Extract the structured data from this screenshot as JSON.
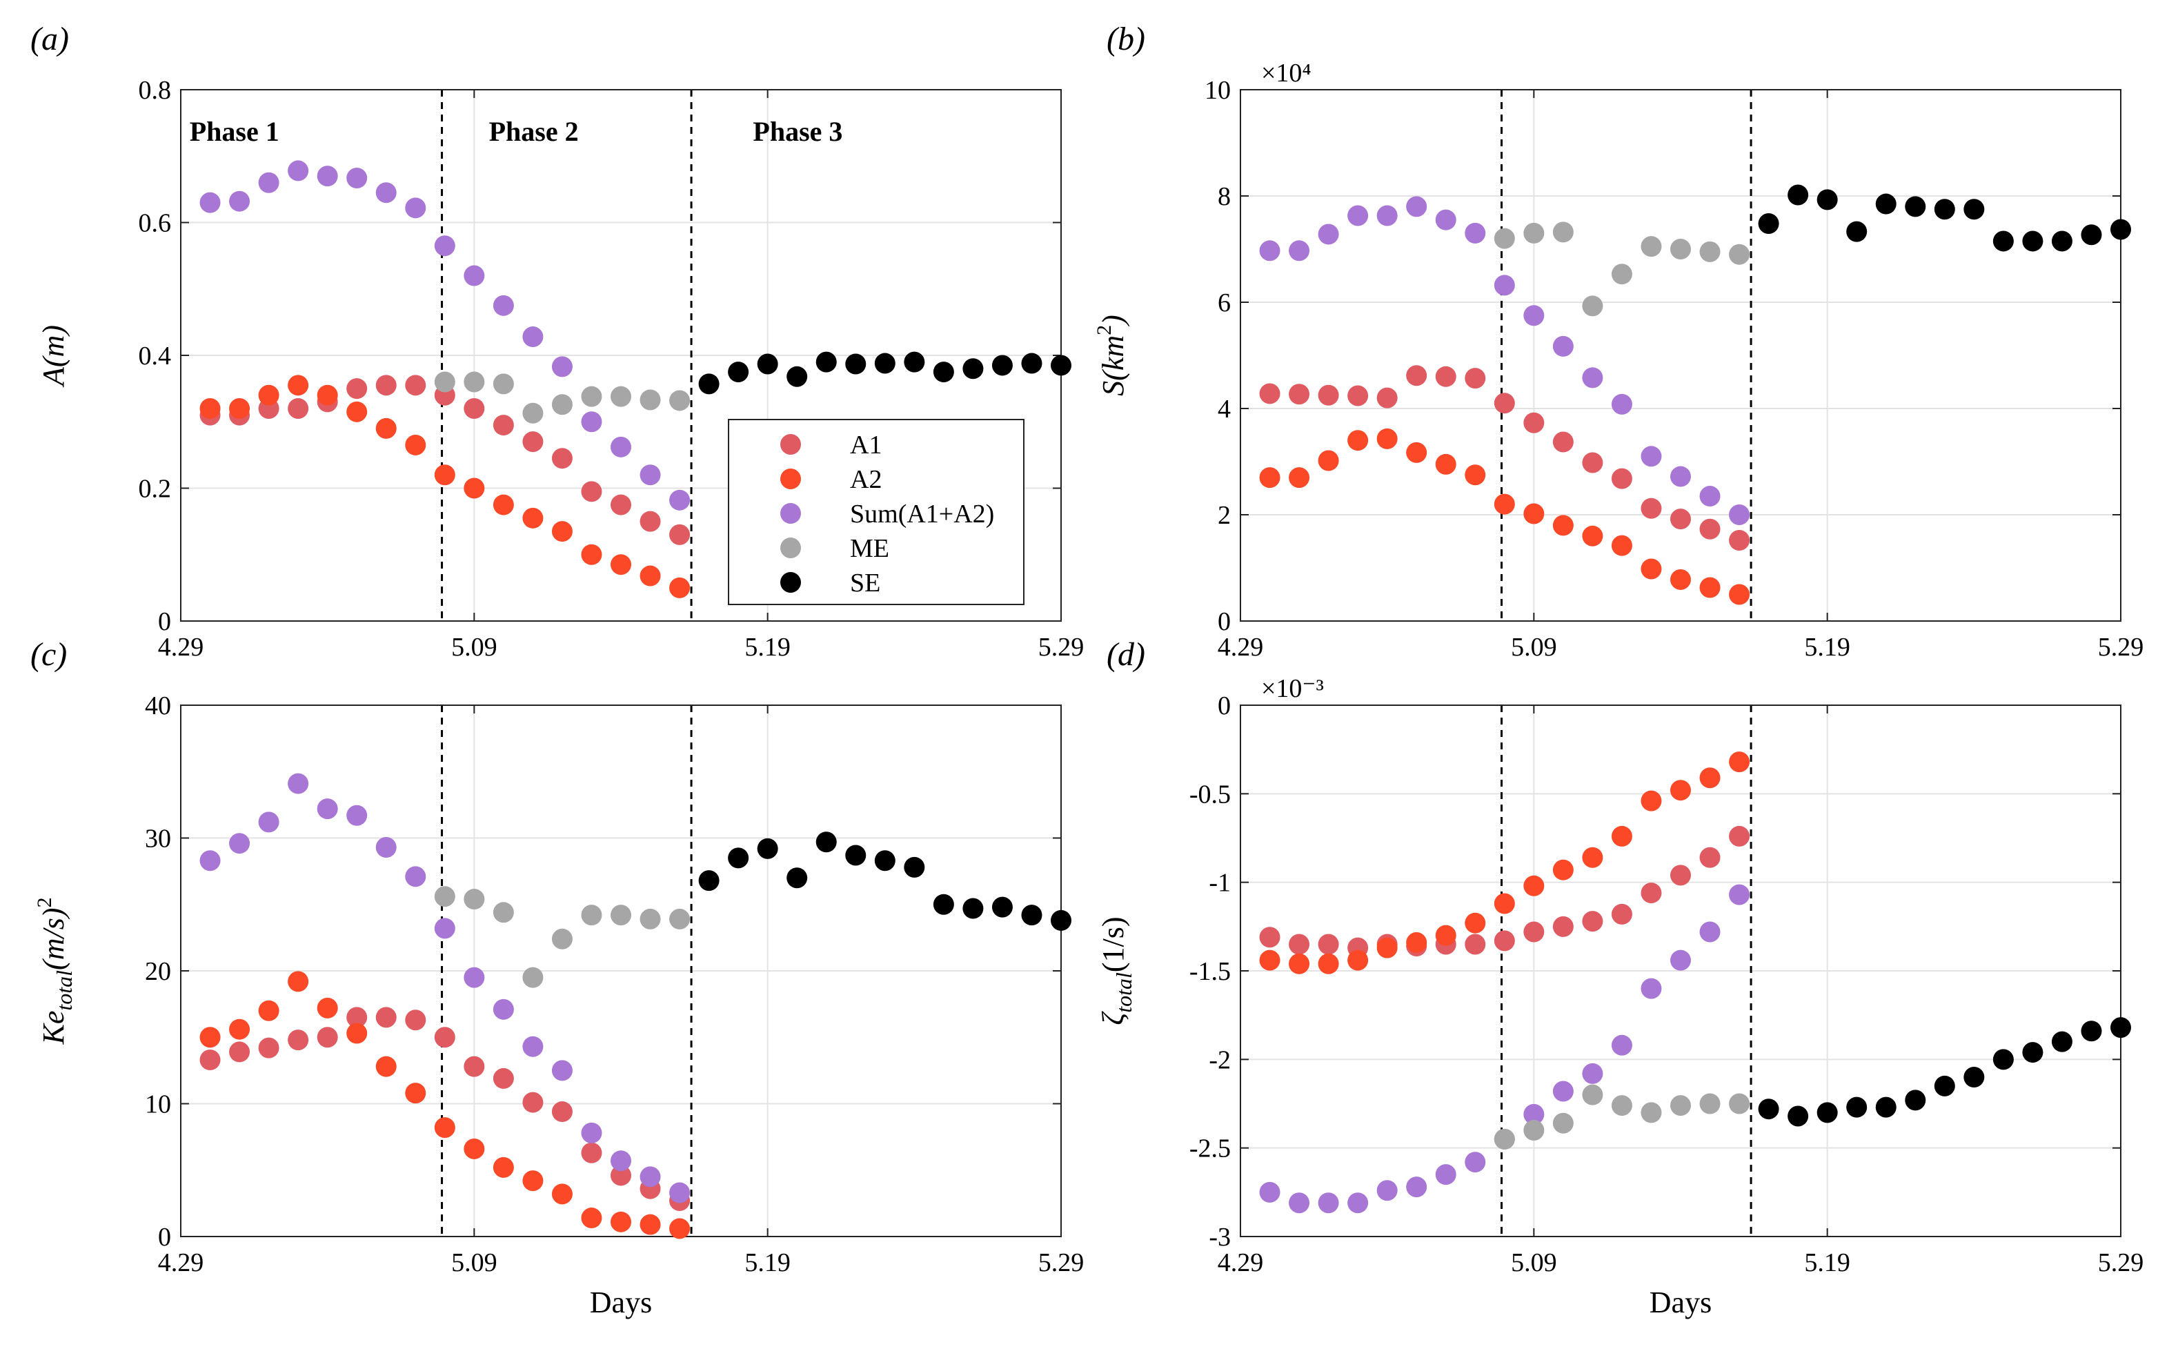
{
  "colors": {
    "A1": "#e05b61",
    "A2": "#fb4827",
    "Sum(A1+A2)": "#a877d6",
    "ME": "#a6a6a6",
    "SE": "#000000"
  },
  "legend": [
    "A1",
    "A2",
    "Sum(A1+A2)",
    "ME",
    "SE"
  ],
  "chart_data": [
    {
      "type": "scatter",
      "panel_label": "(a)",
      "ylabel": "A(m)",
      "xlabel": "",
      "xlim": [
        0,
        30
      ],
      "ylim": [
        0,
        0.8
      ],
      "yticks": [
        "0",
        "0.2",
        "0.4",
        "0.6",
        "0.8"
      ],
      "ytick_values": [
        0,
        0.2,
        0.4,
        0.6,
        0.8
      ],
      "xticks": [
        "4.29",
        "5.09",
        "5.19",
        "5.29"
      ],
      "xtick_values": [
        0,
        10,
        20,
        30
      ],
      "exponent": "",
      "vlines": [
        8.9,
        17.4
      ],
      "phases": [
        "Phase 1",
        "Phase 2",
        "Phase 3"
      ],
      "legend": true,
      "series": [
        {
          "name": "A1",
          "x": [
            1,
            2,
            3,
            4,
            5,
            6,
            7,
            8,
            9,
            10,
            11,
            12,
            13,
            14,
            15,
            16,
            17
          ],
          "y": [
            0.31,
            0.31,
            0.32,
            0.32,
            0.33,
            0.35,
            0.355,
            0.355,
            0.34,
            0.32,
            0.295,
            0.27,
            0.245,
            0.195,
            0.175,
            0.15,
            0.13
          ]
        },
        {
          "name": "A2",
          "x": [
            1,
            2,
            3,
            4,
            5,
            6,
            7,
            8,
            9,
            10,
            11,
            12,
            13,
            14,
            15,
            16,
            17
          ],
          "y": [
            0.32,
            0.32,
            0.34,
            0.355,
            0.34,
            0.315,
            0.29,
            0.265,
            0.22,
            0.2,
            0.175,
            0.155,
            0.135,
            0.1,
            0.085,
            0.068,
            0.05
          ]
        },
        {
          "name": "Sum(A1+A2)",
          "x": [
            1,
            2,
            3,
            4,
            5,
            6,
            7,
            8,
            9,
            10,
            11,
            12,
            13,
            14,
            15,
            16,
            17
          ],
          "y": [
            0.63,
            0.632,
            0.66,
            0.678,
            0.67,
            0.667,
            0.645,
            0.622,
            0.565,
            0.52,
            0.475,
            0.428,
            0.383,
            0.3,
            0.262,
            0.22,
            0.182
          ]
        },
        {
          "name": "ME",
          "x": [
            9,
            10,
            11,
            12,
            13,
            14,
            15,
            16,
            17
          ],
          "y": [
            0.36,
            0.36,
            0.357,
            0.313,
            0.326,
            0.338,
            0.338,
            0.333,
            0.332
          ]
        },
        {
          "name": "SE",
          "x": [
            18,
            19,
            20,
            21,
            22,
            23,
            24,
            25,
            26,
            27,
            28,
            29,
            30
          ],
          "y": [
            0.357,
            0.375,
            0.387,
            0.368,
            0.39,
            0.387,
            0.388,
            0.39,
            0.375,
            0.38,
            0.385,
            0.388,
            0.385
          ]
        }
      ]
    },
    {
      "type": "scatter",
      "panel_label": "(b)",
      "ylabel": "S(km²)",
      "xlabel": "",
      "xlim": [
        0,
        30
      ],
      "ylim": [
        0,
        10
      ],
      "yticks": [
        "0",
        "2",
        "4",
        "6",
        "8",
        "10"
      ],
      "ytick_values": [
        0,
        2,
        4,
        6,
        8,
        10
      ],
      "xticks": [
        "4.29",
        "5.09",
        "5.19",
        "5.29"
      ],
      "xtick_values": [
        0,
        10,
        20,
        30
      ],
      "exponent": "×10⁴",
      "vlines": [
        8.9,
        17.4
      ],
      "phases": [],
      "legend": false,
      "series": [
        {
          "name": "A1",
          "x": [
            1,
            2,
            3,
            4,
            5,
            6,
            7,
            8,
            9,
            10,
            11,
            12,
            13,
            14,
            15,
            16,
            17
          ],
          "y": [
            4.28,
            4.27,
            4.25,
            4.24,
            4.2,
            4.62,
            4.6,
            4.57,
            4.1,
            3.73,
            3.37,
            2.98,
            2.68,
            2.12,
            1.92,
            1.73,
            1.52
          ]
        },
        {
          "name": "A2",
          "x": [
            1,
            2,
            3,
            4,
            5,
            6,
            7,
            8,
            9,
            10,
            11,
            12,
            13,
            14,
            15,
            16,
            17
          ],
          "y": [
            2.7,
            2.7,
            3.02,
            3.4,
            3.43,
            3.17,
            2.95,
            2.75,
            2.2,
            2.02,
            1.8,
            1.6,
            1.42,
            0.98,
            0.78,
            0.63,
            0.5
          ]
        },
        {
          "name": "Sum(A1+A2)",
          "x": [
            1,
            2,
            3,
            4,
            5,
            6,
            7,
            8,
            9,
            10,
            11,
            12,
            13,
            14,
            15,
            16,
            17
          ],
          "y": [
            6.97,
            6.97,
            7.28,
            7.63,
            7.63,
            7.8,
            7.55,
            7.3,
            6.32,
            5.75,
            5.17,
            4.58,
            4.08,
            3.1,
            2.72,
            2.35,
            2.0
          ]
        },
        {
          "name": "ME",
          "x": [
            9,
            10,
            11,
            12,
            13,
            14,
            15,
            16,
            17
          ],
          "y": [
            7.2,
            7.3,
            7.32,
            5.93,
            6.53,
            7.05,
            7.0,
            6.95,
            6.9
          ]
        },
        {
          "name": "SE",
          "x": [
            18,
            19,
            20,
            21,
            22,
            23,
            24,
            25,
            26,
            27,
            28,
            29,
            30
          ],
          "y": [
            7.48,
            8.02,
            7.93,
            7.33,
            7.85,
            7.8,
            7.75,
            7.75,
            7.15,
            7.15,
            7.15,
            7.27,
            7.37
          ]
        }
      ]
    },
    {
      "type": "scatter",
      "panel_label": "(c)",
      "ylabel": "Ke_total(m/s)²",
      "xlabel": "Days",
      "xlim": [
        0,
        30
      ],
      "ylim": [
        0,
        40
      ],
      "yticks": [
        "0",
        "10",
        "20",
        "30",
        "40"
      ],
      "ytick_values": [
        0,
        10,
        20,
        30,
        40
      ],
      "xticks": [
        "4.29",
        "5.09",
        "5.19",
        "5.29"
      ],
      "xtick_values": [
        0,
        10,
        20,
        30
      ],
      "exponent": "",
      "vlines": [
        8.9,
        17.4
      ],
      "phases": [],
      "legend": false,
      "series": [
        {
          "name": "A1",
          "x": [
            1,
            2,
            3,
            4,
            5,
            6,
            7,
            8,
            9,
            10,
            11,
            12,
            13,
            14,
            15,
            16,
            17
          ],
          "y": [
            13.3,
            13.9,
            14.2,
            14.8,
            15.0,
            16.5,
            16.5,
            16.3,
            15.0,
            12.8,
            11.9,
            10.1,
            9.4,
            6.3,
            4.6,
            3.6,
            2.7
          ]
        },
        {
          "name": "A2",
          "x": [
            1,
            2,
            3,
            4,
            5,
            6,
            7,
            8,
            9,
            10,
            11,
            12,
            13,
            14,
            15,
            16,
            17
          ],
          "y": [
            15.0,
            15.6,
            17.0,
            19.2,
            17.2,
            15.3,
            12.8,
            10.8,
            8.2,
            6.6,
            5.2,
            4.2,
            3.2,
            1.4,
            1.1,
            0.9,
            0.6
          ]
        },
        {
          "name": "Sum(A1+A2)",
          "x": [
            1,
            2,
            3,
            4,
            5,
            6,
            7,
            8,
            9,
            10,
            11,
            12,
            13,
            14,
            15,
            16,
            17
          ],
          "y": [
            28.3,
            29.6,
            31.2,
            34.1,
            32.2,
            31.7,
            29.3,
            27.1,
            23.2,
            19.5,
            17.1,
            14.3,
            12.5,
            7.8,
            5.7,
            4.5,
            3.3
          ]
        },
        {
          "name": "ME",
          "x": [
            9,
            10,
            11,
            12,
            13,
            14,
            15,
            16,
            17
          ],
          "y": [
            25.6,
            25.4,
            24.4,
            19.5,
            22.4,
            24.2,
            24.2,
            23.9,
            23.9
          ]
        },
        {
          "name": "SE",
          "x": [
            18,
            19,
            20,
            21,
            22,
            23,
            24,
            25,
            26,
            27,
            28,
            29,
            30
          ],
          "y": [
            26.8,
            28.5,
            29.2,
            27.0,
            29.7,
            28.7,
            28.3,
            27.8,
            25.0,
            24.7,
            24.8,
            24.2,
            23.8
          ]
        }
      ]
    },
    {
      "type": "scatter",
      "panel_label": "(d)",
      "ylabel": "ζ_total(1/s)",
      "xlabel": "Days",
      "xlim": [
        0,
        30
      ],
      "ylim": [
        -3,
        0
      ],
      "yticks": [
        "-3",
        "-2.5",
        "-2",
        "-1.5",
        "-1",
        "-0.5",
        "0"
      ],
      "ytick_values": [
        -3,
        -2.5,
        -2,
        -1.5,
        -1,
        -0.5,
        0
      ],
      "xticks": [
        "4.29",
        "5.09",
        "5.19",
        "5.29"
      ],
      "xtick_values": [
        0,
        10,
        20,
        30
      ],
      "exponent": "×10⁻³",
      "vlines": [
        8.9,
        17.4
      ],
      "phases": [],
      "legend": false,
      "series": [
        {
          "name": "A1",
          "x": [
            1,
            2,
            3,
            4,
            5,
            6,
            7,
            8,
            9,
            10,
            11,
            12,
            13,
            14,
            15,
            16,
            17
          ],
          "y": [
            -1.31,
            -1.35,
            -1.35,
            -1.37,
            -1.35,
            -1.36,
            -1.35,
            -1.35,
            -1.33,
            -1.28,
            -1.25,
            -1.22,
            -1.18,
            -1.06,
            -0.96,
            -0.86,
            -0.74
          ]
        },
        {
          "name": "A2",
          "x": [
            1,
            2,
            3,
            4,
            5,
            6,
            7,
            8,
            9,
            10,
            11,
            12,
            13,
            14,
            15,
            16,
            17
          ],
          "y": [
            -1.44,
            -1.46,
            -1.46,
            -1.44,
            -1.37,
            -1.34,
            -1.3,
            -1.23,
            -1.12,
            -1.02,
            -0.93,
            -0.86,
            -0.74,
            -0.54,
            -0.48,
            -0.41,
            -0.32
          ]
        },
        {
          "name": "Sum(A1+A2)",
          "x": [
            1,
            2,
            3,
            4,
            5,
            6,
            7,
            8,
            9,
            10,
            11,
            12,
            13,
            14,
            15,
            16,
            17
          ],
          "y": [
            -2.75,
            -2.81,
            -2.81,
            -2.81,
            -2.74,
            -2.72,
            -2.65,
            -2.58,
            -2.45,
            -2.31,
            -2.18,
            -2.08,
            -1.92,
            -1.6,
            -1.44,
            -1.28,
            -1.07
          ]
        },
        {
          "name": "ME",
          "x": [
            9,
            10,
            11,
            12,
            13,
            14,
            15,
            16,
            17
          ],
          "y": [
            -2.45,
            -2.4,
            -2.36,
            -2.2,
            -2.26,
            -2.3,
            -2.26,
            -2.25,
            -2.25
          ]
        },
        {
          "name": "SE",
          "x": [
            18,
            19,
            20,
            21,
            22,
            23,
            24,
            25,
            26,
            27,
            28,
            29,
            30
          ],
          "y": [
            -2.28,
            -2.32,
            -2.3,
            -2.27,
            -2.27,
            -2.23,
            -2.15,
            -2.1,
            -2.0,
            -1.96,
            -1.9,
            -1.84,
            -1.82
          ]
        }
      ]
    }
  ]
}
